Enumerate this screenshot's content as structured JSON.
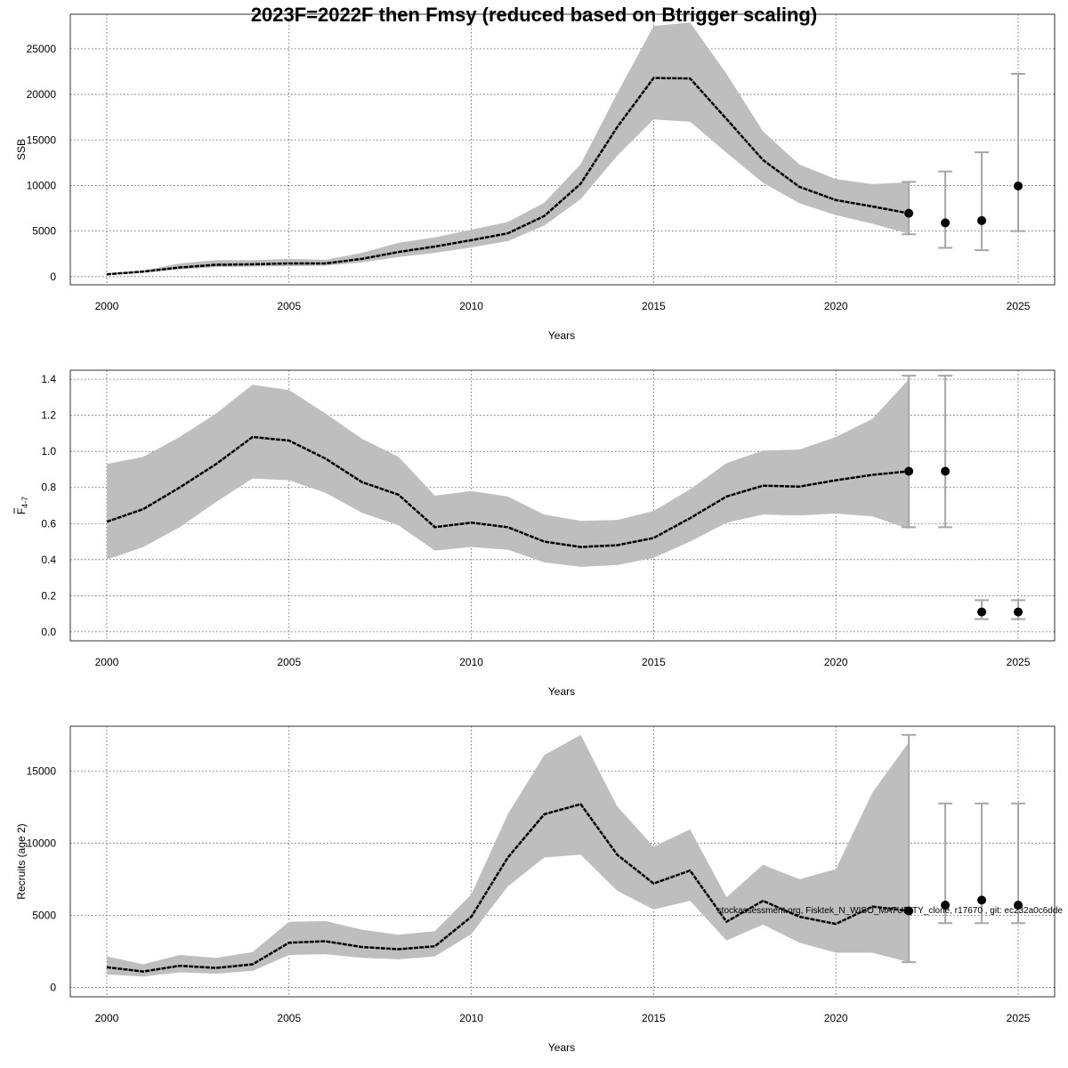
{
  "chart_data": {
    "title": "2023F=2022F then Fmsy (reduced based on Btrigger scaling)",
    "footnote": "stockassessment.org, Fisktek_N_WISO_MATURITY_clone, r17670 , git: ec232a0c6dde",
    "panels": [
      {
        "type": "line",
        "ylabel": "SSB",
        "xlabel": "Years",
        "xlim": [
          1999,
          2026
        ],
        "ylim": [
          -900,
          28800
        ],
        "xticks": [
          2000,
          2005,
          2010,
          2015,
          2020,
          2025
        ],
        "yticks": [
          0,
          5000,
          10000,
          15000,
          20000,
          25000
        ],
        "years": [
          2000,
          2001,
          2002,
          2003,
          2004,
          2005,
          2006,
          2007,
          2008,
          2009,
          2010,
          2011,
          2012,
          2013,
          2014,
          2015,
          2016,
          2017,
          2018,
          2019,
          2020,
          2021,
          2022
        ],
        "estimate": [
          250,
          550,
          1000,
          1300,
          1350,
          1450,
          1450,
          1950,
          2700,
          3300,
          4000,
          4750,
          6650,
          10200,
          16400,
          21800,
          21750,
          17300,
          12800,
          9850,
          8400,
          7700,
          6950
        ],
        "lower": [
          200,
          450,
          800,
          1050,
          1100,
          1150,
          1200,
          1550,
          2150,
          2600,
          3200,
          3900,
          5600,
          8500,
          13250,
          17250,
          17000,
          13600,
          10300,
          8050,
          6750,
          5800,
          4700
        ],
        "upper": [
          350,
          650,
          1450,
          1800,
          1800,
          1950,
          1850,
          2600,
          3700,
          4300,
          5150,
          6000,
          8100,
          12350,
          20100,
          27500,
          27900,
          22250,
          15950,
          12300,
          10700,
          10150,
          10350
        ],
        "forecast": [
          {
            "year": 2022,
            "value": 6950,
            "low": 4650,
            "high": 10400
          },
          {
            "year": 2023,
            "value": 5900,
            "low": 3150,
            "high": 11550
          },
          {
            "year": 2024,
            "value": 6150,
            "low": 2900,
            "high": 13650
          },
          {
            "year": 2025,
            "value": 9950,
            "low": 5000,
            "high": 22250
          }
        ]
      },
      {
        "type": "line",
        "ylabel": "F4-7",
        "ylabel_main": "F",
        "ylabel_sub": "4-7",
        "xlabel": "Years",
        "xlim": [
          1999,
          2026
        ],
        "ylim": [
          -0.05,
          1.45
        ],
        "xticks": [
          2000,
          2005,
          2010,
          2015,
          2020,
          2025
        ],
        "yticks": [
          0.0,
          0.2,
          0.4,
          0.6,
          0.8,
          1.0,
          1.2,
          1.4
        ],
        "ytick_labels": [
          "0.0",
          "0.2",
          "0.4",
          "0.6",
          "0.8",
          "1.0",
          "1.2",
          "1.4"
        ],
        "years": [
          2000,
          2001,
          2002,
          2003,
          2004,
          2005,
          2006,
          2007,
          2008,
          2009,
          2010,
          2011,
          2012,
          2013,
          2014,
          2015,
          2016,
          2017,
          2018,
          2019,
          2020,
          2021,
          2022
        ],
        "estimate": [
          0.61,
          0.68,
          0.8,
          0.93,
          1.08,
          1.06,
          0.96,
          0.83,
          0.76,
          0.58,
          0.605,
          0.58,
          0.5,
          0.47,
          0.48,
          0.52,
          0.63,
          0.75,
          0.81,
          0.805,
          0.84,
          0.87,
          0.89
        ],
        "lower": [
          0.4,
          0.47,
          0.58,
          0.72,
          0.85,
          0.84,
          0.77,
          0.66,
          0.59,
          0.45,
          0.47,
          0.455,
          0.385,
          0.36,
          0.37,
          0.41,
          0.5,
          0.605,
          0.65,
          0.645,
          0.655,
          0.64,
          0.57
        ],
        "upper": [
          0.93,
          0.97,
          1.08,
          1.21,
          1.37,
          1.34,
          1.21,
          1.07,
          0.97,
          0.755,
          0.78,
          0.75,
          0.65,
          0.615,
          0.62,
          0.67,
          0.79,
          0.935,
          1.005,
          1.01,
          1.08,
          1.18,
          1.4
        ],
        "forecast": [
          {
            "year": 2022,
            "value": 0.89,
            "low": 0.58,
            "high": 1.42
          },
          {
            "year": 2023,
            "value": 0.89,
            "low": 0.58,
            "high": 1.42
          },
          {
            "year": 2024,
            "value": 0.11,
            "low": 0.07,
            "high": 0.175
          },
          {
            "year": 2025,
            "value": 0.11,
            "low": 0.07,
            "high": 0.175
          }
        ]
      },
      {
        "type": "line",
        "ylabel": "Recruits (age 2)",
        "xlabel": "Years",
        "xlim": [
          1999,
          2026
        ],
        "ylim": [
          -650,
          18100
        ],
        "xticks": [
          2000,
          2005,
          2010,
          2015,
          2020,
          2025
        ],
        "yticks": [
          0,
          5000,
          10000,
          15000
        ],
        "years": [
          2000,
          2001,
          2002,
          2003,
          2004,
          2005,
          2006,
          2007,
          2008,
          2009,
          2010,
          2011,
          2012,
          2013,
          2014,
          2015,
          2016,
          2017,
          2018,
          2019,
          2020,
          2021,
          2022
        ],
        "estimate": [
          1400,
          1100,
          1500,
          1350,
          1600,
          3100,
          3200,
          2800,
          2650,
          2850,
          4900,
          9000,
          12000,
          12700,
          9200,
          7200,
          8100,
          4550,
          6000,
          4900,
          4400,
          5600,
          5300
        ],
        "lower": [
          900,
          750,
          1050,
          950,
          1150,
          2250,
          2300,
          2050,
          1950,
          2150,
          3700,
          7000,
          9000,
          9200,
          6700,
          5400,
          6000,
          3250,
          4350,
          3100,
          2400,
          2400,
          1750
        ],
        "upper": [
          2150,
          1600,
          2250,
          2050,
          2450,
          4550,
          4600,
          4000,
          3650,
          3900,
          6450,
          12000,
          16100,
          17500,
          12550,
          9750,
          10950,
          6250,
          8500,
          7500,
          8200,
          13500,
          17000
        ],
        "forecast": [
          {
            "year": 2022,
            "value": 5300,
            "low": 1750,
            "high": 17500
          },
          {
            "year": 2023,
            "value": 5700,
            "low": 4450,
            "high": 12750
          },
          {
            "year": 2024,
            "value": 6050,
            "low": 4450,
            "high": 12750
          },
          {
            "year": 2025,
            "value": 5700,
            "low": 4450,
            "high": 12750
          }
        ]
      }
    ]
  }
}
